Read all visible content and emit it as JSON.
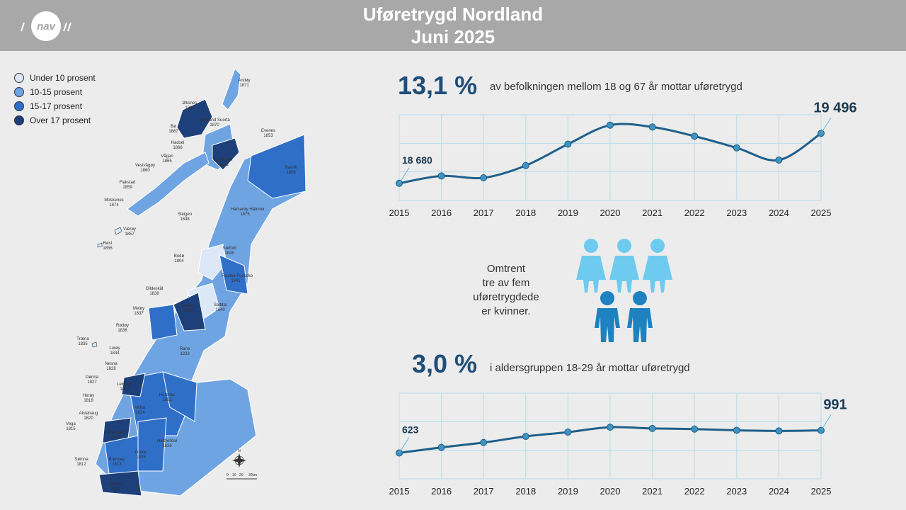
{
  "header": {
    "title_line1": "Uføretrygd Nordland",
    "title_line2": "Juni 2025",
    "logo_text": "nav"
  },
  "legend": [
    {
      "label": "Under 10 prosent",
      "color": "#dce8f7"
    },
    {
      "label": "10-15 prosent",
      "color": "#6fa4e3"
    },
    {
      "label": "15-17 prosent",
      "color": "#2f6fc7"
    },
    {
      "label": "Over 17 prosent",
      "color": "#1d3f7a"
    }
  ],
  "municipalities": [
    {
      "name": "Andøy",
      "code": "1871"
    },
    {
      "name": "Øksnes",
      "code": "1868"
    },
    {
      "name": "Sortland Suortá",
      "code": "1870"
    },
    {
      "name": "Bø",
      "code": "1867"
    },
    {
      "name": "Hadsel",
      "code": "1866"
    },
    {
      "name": "Evenes",
      "code": "1853"
    },
    {
      "name": "Lødingen",
      "code": "1851"
    },
    {
      "name": "Vågan",
      "code": "1865"
    },
    {
      "name": "Vestvågøy",
      "code": "1860"
    },
    {
      "name": "Narvik",
      "code": "1806"
    },
    {
      "name": "Flakstad",
      "code": "1859"
    },
    {
      "name": "Moskenes",
      "code": "1874"
    },
    {
      "name": "Hamarøy Hábmer",
      "code": "1875"
    },
    {
      "name": "Steigen",
      "code": "1848"
    },
    {
      "name": "Værøy",
      "code": "1857"
    },
    {
      "name": "Røst",
      "code": "1856"
    },
    {
      "name": "Sørfold",
      "code": "1845"
    },
    {
      "name": "Bodø",
      "code": "1804"
    },
    {
      "name": "Fauske Fuossko",
      "code": "1841"
    },
    {
      "name": "Gildeskål",
      "code": "1838"
    },
    {
      "name": "Beiarn",
      "code": "1839"
    },
    {
      "name": "Saltdal",
      "code": "1840"
    },
    {
      "name": "Meløy",
      "code": "1837"
    },
    {
      "name": "Rødøy",
      "code": "1836"
    },
    {
      "name": "Træna",
      "code": "1835"
    },
    {
      "name": "Lurøy",
      "code": "1834"
    },
    {
      "name": "Rana",
      "code": "1833"
    },
    {
      "name": "Nesna",
      "code": "1828"
    },
    {
      "name": "Dønna",
      "code": "1827"
    },
    {
      "name": "Leirfjord",
      "code": "1822"
    },
    {
      "name": "Herøy",
      "code": "1818"
    },
    {
      "name": "Hemnes",
      "code": "1832"
    },
    {
      "name": "Alstahaug",
      "code": "1820"
    },
    {
      "name": "Vefsn",
      "code": "1824"
    },
    {
      "name": "Vega",
      "code": "1815"
    },
    {
      "name": "Vevelstad",
      "code": "1816"
    },
    {
      "name": "Grane",
      "code": "1825"
    },
    {
      "name": "Hattfjelldal",
      "code": "1826"
    },
    {
      "name": "Sømna",
      "code": "1812"
    },
    {
      "name": "Brønnøy",
      "code": "1813"
    },
    {
      "name": "Bindal",
      "code": "1811"
    }
  ],
  "scale": {
    "labels": [
      "0",
      "10",
      "20",
      "30km"
    ],
    "north": "N"
  },
  "stat1": {
    "pct": "13,1 %",
    "text": "av befolkningen mellom 18 og 67 år mottar uføretrygd"
  },
  "stat2": {
    "pct": "3,0 %",
    "text": "i aldersgruppen 18-29 år mottar uføretrygd"
  },
  "women": {
    "lines": [
      "Omtrent",
      "tre av fem",
      "uføretrygdede",
      "er kvinner."
    ]
  },
  "chart_data": [
    {
      "type": "line",
      "categories": [
        "2015",
        "2016",
        "2017",
        "2018",
        "2019",
        "2020",
        "2021",
        "2022",
        "2023",
        "2024",
        "2025"
      ],
      "series": [
        {
          "values": [
            18680,
            18800,
            18770,
            18970,
            19320,
            19630,
            19600,
            19450,
            19260,
            19060,
            19496
          ]
        }
      ],
      "labels": {
        "first": "18 680",
        "last": "19 496"
      },
      "ylim": [
        18400,
        19800
      ],
      "color": "#1f5f8b"
    },
    {
      "type": "line",
      "categories": [
        "2015",
        "2016",
        "2017",
        "2018",
        "2019",
        "2020",
        "2021",
        "2022",
        "2023",
        "2024",
        "2025"
      ],
      "series": [
        {
          "values": [
            623,
            713,
            793,
            893,
            963,
            1043,
            1023,
            1013,
            993,
            983,
            991
          ]
        }
      ],
      "labels": {
        "first": "623",
        "last": "991"
      },
      "ylim": [
        200,
        1600
      ],
      "color": "#1f5f8b"
    }
  ]
}
